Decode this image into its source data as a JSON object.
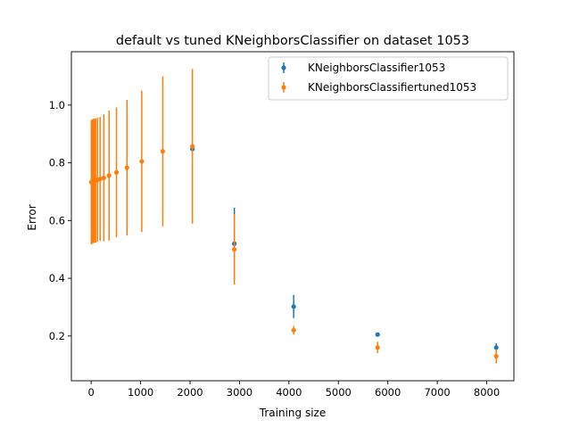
{
  "chart_data": {
    "type": "scatter",
    "title": "default vs tuned KNeighborsClassifier on dataset 1053",
    "xlabel": "Training size",
    "ylabel": "Error",
    "xlim": [
      -400,
      8550
    ],
    "ylim": [
      0.045,
      1.185
    ],
    "x_ticks": [
      0,
      1000,
      2000,
      3000,
      4000,
      5000,
      6000,
      7000,
      8000
    ],
    "y_ticks": [
      0.2,
      0.4,
      0.6,
      0.8,
      1.0
    ],
    "x_tick_labels": [
      "0",
      "1000",
      "2000",
      "3000",
      "4000",
      "5000",
      "6000",
      "7000",
      "8000"
    ],
    "y_tick_labels": [
      "0.2",
      "0.4",
      "0.6",
      "0.8",
      "1.0"
    ],
    "grid": false,
    "legend_position": "top-right",
    "series": [
      {
        "name": "KNeighborsClassifier1053",
        "color": "#1f77b4",
        "points": [
          {
            "x": 2048,
            "y": 0.848,
            "err": 0.0
          },
          {
            "x": 2896,
            "y": 0.52,
            "err": 0.125
          },
          {
            "x": 4096,
            "y": 0.302,
            "err": 0.04
          },
          {
            "x": 5793,
            "y": 0.205,
            "err": 0.005
          },
          {
            "x": 8192,
            "y": 0.16,
            "err": 0.015
          }
        ]
      },
      {
        "name": "KNeighborsClassifiertuned1053",
        "color": "#ff7f0e",
        "points": [
          {
            "x": 4,
            "y": 0.733,
            "err": 0.215
          },
          {
            "x": 8,
            "y": 0.733,
            "err": 0.215
          },
          {
            "x": 16,
            "y": 0.735,
            "err": 0.215
          },
          {
            "x": 32,
            "y": 0.736,
            "err": 0.215
          },
          {
            "x": 45,
            "y": 0.737,
            "err": 0.215
          },
          {
            "x": 64,
            "y": 0.738,
            "err": 0.215
          },
          {
            "x": 91,
            "y": 0.739,
            "err": 0.215
          },
          {
            "x": 128,
            "y": 0.741,
            "err": 0.215
          },
          {
            "x": 181,
            "y": 0.744,
            "err": 0.215
          },
          {
            "x": 256,
            "y": 0.748,
            "err": 0.22
          },
          {
            "x": 362,
            "y": 0.756,
            "err": 0.225
          },
          {
            "x": 512,
            "y": 0.767,
            "err": 0.225
          },
          {
            "x": 724,
            "y": 0.783,
            "err": 0.235
          },
          {
            "x": 1024,
            "y": 0.805,
            "err": 0.245
          },
          {
            "x": 1448,
            "y": 0.84,
            "err": 0.26
          },
          {
            "x": 2048,
            "y": 0.857,
            "err": 0.268
          },
          {
            "x": 2896,
            "y": 0.5,
            "err": 0.122
          },
          {
            "x": 4096,
            "y": 0.22,
            "err": 0.015
          },
          {
            "x": 5793,
            "y": 0.16,
            "err": 0.02
          },
          {
            "x": 8192,
            "y": 0.13,
            "err": 0.025
          }
        ]
      }
    ]
  }
}
